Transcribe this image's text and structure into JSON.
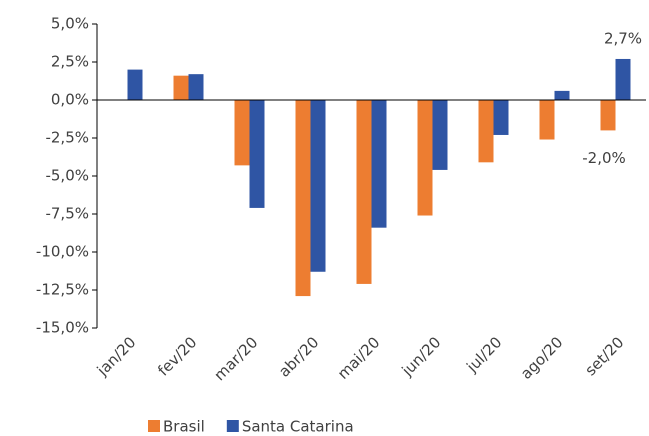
{
  "chart_data": {
    "type": "bar",
    "categories": [
      "jan/20",
      "fev/20",
      "mar/20",
      "abr/20",
      "mai/20",
      "jun/20",
      "jul/20",
      "ago/20",
      "set/20"
    ],
    "series": [
      {
        "name": "Brasil",
        "color": "#ed7d31",
        "values": [
          null,
          1.6,
          -4.3,
          -12.9,
          -12.1,
          -7.6,
          -4.1,
          -2.6,
          -2.0
        ],
        "value_labels": [
          null,
          null,
          null,
          null,
          null,
          null,
          null,
          null,
          "-2,0%"
        ]
      },
      {
        "name": "Santa Catarina",
        "color": "#2f55a4",
        "values": [
          2.0,
          1.7,
          -7.1,
          -11.3,
          -8.4,
          -4.6,
          -2.3,
          0.6,
          2.7
        ],
        "value_labels": [
          null,
          null,
          null,
          null,
          null,
          null,
          null,
          null,
          "2,7%"
        ]
      }
    ],
    "ylim": [
      -15,
      5
    ],
    "yticks": [
      {
        "value": -15,
        "label": "-15,0%"
      },
      {
        "value": -12.5,
        "label": "-12,5%"
      },
      {
        "value": -10,
        "label": "-10,0%"
      },
      {
        "value": -7.5,
        "label": "-7,5%"
      },
      {
        "value": -5,
        "label": "-5,0%"
      },
      {
        "value": -2.5,
        "label": "-2,5%"
      },
      {
        "value": 0,
        "label": "0,0%"
      },
      {
        "value": 2.5,
        "label": "2,5%"
      },
      {
        "value": 5,
        "label": "5,0%"
      }
    ],
    "legend": "bottom"
  }
}
